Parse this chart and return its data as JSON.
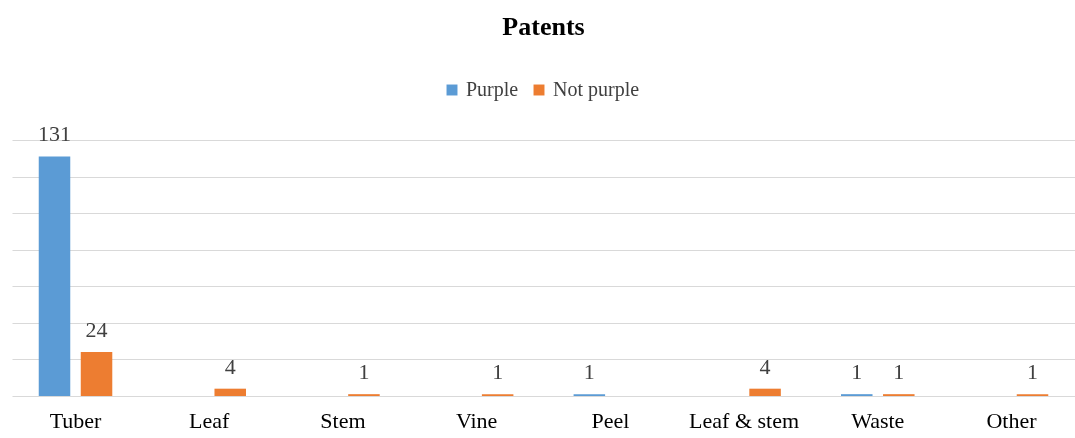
{
  "chart_data": {
    "type": "bar",
    "title": "Patents",
    "categories": [
      "Tuber",
      "Leaf",
      "Stem",
      "Vine",
      "Peel",
      "Leaf & stem",
      "Waste",
      "Other"
    ],
    "series": [
      {
        "name": "Purple",
        "color": "#5b9bd5",
        "values": [
          131,
          null,
          null,
          null,
          1,
          null,
          1,
          null
        ]
      },
      {
        "name": "Not purple",
        "color": "#ed7d31",
        "values": [
          24,
          4,
          1,
          1,
          null,
          4,
          1,
          1
        ]
      }
    ],
    "tick_labels": "x",
    "grid": "y",
    "legend": "top",
    "data_labels": true
  }
}
